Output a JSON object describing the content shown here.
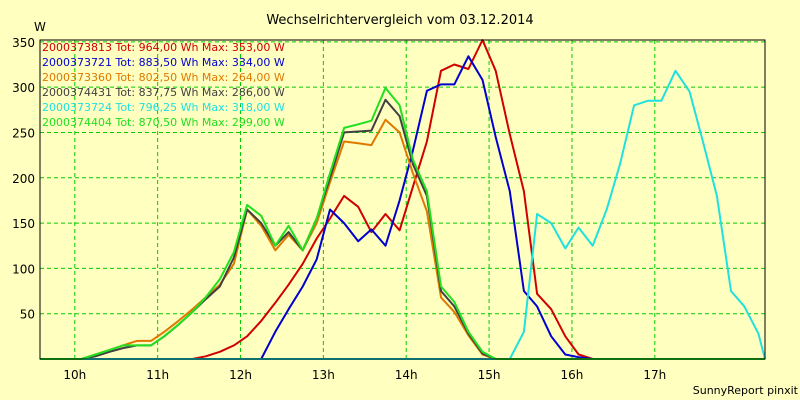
{
  "chart_data": {
    "type": "line",
    "title": "Wechselrichtervergleich vom 03.12.2014",
    "ylabel": "W",
    "xlabel": "",
    "footer": "SunnyReport pinxit",
    "x_ticks": [
      "10h",
      "11h",
      "12h",
      "13h",
      "14h",
      "15h",
      "16h",
      "17h"
    ],
    "y_ticks": [
      50,
      100,
      150,
      200,
      250,
      300,
      350
    ],
    "ylim": [
      0,
      352
    ],
    "xlim": [
      9.58,
      18.33
    ],
    "grid": true,
    "legend_position": "top-left",
    "x": [
      9.58,
      9.92,
      10.08,
      10.25,
      10.42,
      10.58,
      10.75,
      10.92,
      11.08,
      11.25,
      11.42,
      11.58,
      11.75,
      11.92,
      12.08,
      12.25,
      12.42,
      12.58,
      12.75,
      12.92,
      13.08,
      13.25,
      13.42,
      13.58,
      13.75,
      13.92,
      14.08,
      14.25,
      14.42,
      14.58,
      14.75,
      14.92,
      15.08,
      15.25,
      15.42,
      15.58,
      15.75,
      15.92,
      16.08,
      16.25,
      16.42,
      16.58,
      16.75,
      16.92,
      17.08,
      17.25,
      17.42,
      17.58,
      17.75,
      17.92,
      18.08,
      18.25,
      18.33
    ],
    "series": [
      {
        "name": "2000373813 Tot: 964,00 Wh Max: 353,00 W",
        "color": "#d00000",
        "values": [
          0,
          0,
          0,
          0,
          0,
          0,
          0,
          0,
          0,
          0,
          0,
          3,
          8,
          15,
          25,
          42,
          62,
          82,
          105,
          133,
          155,
          180,
          168,
          140,
          160,
          142,
          190,
          240,
          318,
          325,
          320,
          352,
          318,
          248,
          185,
          72,
          55,
          25,
          5,
          0,
          0,
          0,
          0,
          0,
          0,
          0,
          0,
          0,
          0,
          0,
          0,
          0,
          0
        ]
      },
      {
        "name": "2000373721 Tot: 883,50 Wh Max: 334,00 W",
        "color": "#0000d0",
        "values": [
          0,
          0,
          0,
          0,
          0,
          0,
          0,
          0,
          0,
          0,
          0,
          0,
          0,
          0,
          0,
          0,
          30,
          55,
          80,
          110,
          165,
          150,
          130,
          143,
          125,
          175,
          230,
          296,
          303,
          303,
          334,
          308,
          245,
          185,
          75,
          58,
          25,
          5,
          2,
          0,
          0,
          0,
          0,
          0,
          0,
          0,
          0,
          0,
          0,
          0,
          0,
          0,
          0
        ]
      },
      {
        "name": "2000373360 Tot: 802,50 Wh Max: 264,00 W",
        "color": "#e07800",
        "values": [
          0,
          0,
          0,
          5,
          10,
          15,
          20,
          20,
          30,
          42,
          55,
          68,
          82,
          105,
          165,
          147,
          120,
          137,
          120,
          150,
          195,
          240,
          238,
          236,
          264,
          250,
          205,
          163,
          68,
          52,
          26,
          5,
          0,
          0,
          0,
          0,
          0,
          0,
          0,
          0,
          0,
          0,
          0,
          0,
          0,
          0,
          0,
          0,
          0,
          0,
          0,
          0,
          0
        ]
      },
      {
        "name": "2000374431 Tot: 837,75 Wh Max: 286,00 W",
        "color": "#404040",
        "values": [
          0,
          0,
          0,
          3,
          8,
          12,
          15,
          15,
          25,
          38,
          52,
          66,
          80,
          112,
          165,
          150,
          125,
          140,
          120,
          155,
          200,
          250,
          251,
          252,
          286,
          268,
          215,
          180,
          75,
          58,
          28,
          6,
          0,
          0,
          0,
          0,
          0,
          0,
          0,
          0,
          0,
          0,
          0,
          0,
          0,
          0,
          0,
          0,
          0,
          0,
          0,
          0,
          0
        ]
      },
      {
        "name": "2000373724 Tot: 796,25 Wh Max: 318,00 W",
        "color": "#20e0e0",
        "values": [
          0,
          0,
          0,
          0,
          0,
          0,
          0,
          0,
          0,
          0,
          0,
          0,
          0,
          0,
          0,
          0,
          0,
          0,
          0,
          0,
          0,
          0,
          0,
          0,
          0,
          0,
          0,
          0,
          0,
          0,
          0,
          0,
          0,
          0,
          30,
          160,
          150,
          122,
          145,
          125,
          165,
          215,
          280,
          285,
          285,
          318,
          295,
          240,
          180,
          75,
          58,
          28,
          0
        ]
      },
      {
        "name": "2000374404 Tot: 870,50 Wh Max: 299,00 W",
        "color": "#20e020",
        "values": [
          0,
          0,
          0,
          5,
          10,
          15,
          15,
          15,
          25,
          38,
          52,
          68,
          88,
          118,
          170,
          158,
          125,
          147,
          120,
          155,
          205,
          255,
          259,
          263,
          299,
          280,
          220,
          185,
          80,
          63,
          30,
          8,
          0,
          0,
          0,
          0,
          0,
          0,
          0,
          0,
          0,
          0,
          0,
          0,
          0,
          0,
          0,
          0,
          0,
          0,
          0,
          0,
          0
        ]
      }
    ]
  }
}
